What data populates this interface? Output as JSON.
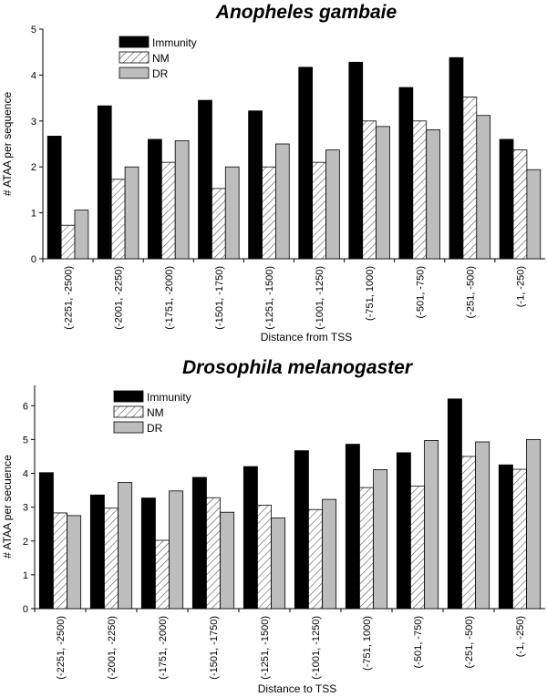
{
  "colors": {
    "immunity": "#000000",
    "nm_hatch": "#555555",
    "dr": "#bdbdbd",
    "axis": "#000000"
  },
  "chart_data": [
    {
      "type": "bar",
      "title": "Anopheles gambaie",
      "xlabel": "Distance from TSS",
      "ylabel": "# ATAA per sequence",
      "ylim": [
        0,
        5
      ],
      "yticks": [
        0,
        1,
        2,
        3,
        4,
        5
      ],
      "grid": false,
      "legend_position": "top-left",
      "categories": [
        "(-2251, -2500)",
        "(-2001, -2250)",
        "(-1751, -2000)",
        "(-1501, -1750)",
        "(-1251, -1500)",
        "(-1001, -1250)",
        "(-751, 1000)",
        "(-501, -750)",
        "(-251, -500)",
        "(-1, -250)"
      ],
      "series": [
        {
          "name": "Immunity",
          "values": [
            2.67,
            3.33,
            2.6,
            3.45,
            3.22,
            4.17,
            4.28,
            3.73,
            4.38,
            2.6
          ]
        },
        {
          "name": "NM",
          "values": [
            0.73,
            1.73,
            2.1,
            1.53,
            2.0,
            2.1,
            3.0,
            3.0,
            3.52,
            2.37
          ]
        },
        {
          "name": "DR",
          "values": [
            1.06,
            2.0,
            2.57,
            2.0,
            2.5,
            2.37,
            2.88,
            2.81,
            3.12,
            1.94
          ]
        }
      ]
    },
    {
      "type": "bar",
      "title": "Drosophila melanogaster",
      "xlabel": "Distance to TSS",
      "ylabel": "# ATAA per secuence",
      "ylim": [
        0,
        6.6
      ],
      "yticks": [
        0,
        1,
        2,
        3,
        4,
        5,
        6
      ],
      "grid": false,
      "legend_position": "top-left",
      "categories": [
        "(-2251, -2500)",
        "(-2001, -2250)",
        "(-1751, -2000)",
        "(-1501, -1750)",
        "(-1251, -1500)",
        "(-1001, -1250)",
        "(-751, 1000)",
        "(-501, -750)",
        "(-251, -500)",
        "(-1, -250)"
      ],
      "series": [
        {
          "name": "Immunity",
          "values": [
            4.02,
            3.36,
            3.27,
            3.88,
            4.2,
            4.67,
            4.86,
            4.61,
            6.2,
            4.25
          ]
        },
        {
          "name": "NM",
          "values": [
            2.83,
            2.97,
            2.02,
            3.28,
            3.06,
            2.93,
            3.58,
            3.62,
            4.5,
            4.12
          ]
        },
        {
          "name": "DR",
          "values": [
            2.75,
            3.73,
            3.48,
            2.85,
            2.68,
            3.23,
            4.11,
            4.97,
            4.93,
            5.0
          ]
        }
      ]
    }
  ]
}
